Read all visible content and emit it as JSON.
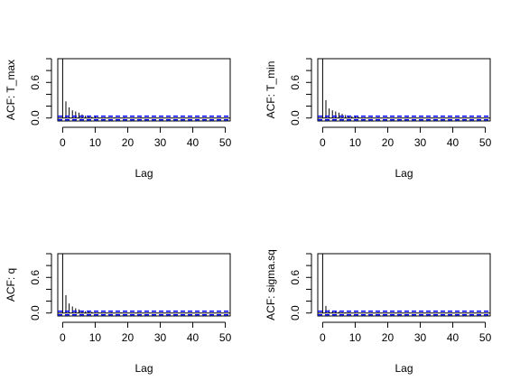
{
  "chart_data": [
    {
      "type": "bar",
      "ylabel": "ACF: T_max",
      "xlabel": "Lag",
      "x_ticks": [
        0,
        10,
        20,
        30,
        40,
        50
      ],
      "y_ticks": [
        "0.0",
        "0.6"
      ],
      "xlim": [
        -1.5,
        51.5
      ],
      "ylim": [
        -0.05,
        1.0
      ],
      "conf_bound": 0.03,
      "conf_color": "#0000ff",
      "lags": [
        0,
        1,
        2,
        3,
        4,
        5,
        6,
        7,
        8,
        9,
        10,
        11,
        12,
        13,
        14,
        15,
        16,
        17,
        18,
        19,
        20,
        21,
        22,
        23,
        24,
        25,
        26,
        27,
        28,
        29,
        30,
        31,
        32,
        33,
        34,
        35,
        36,
        37,
        38,
        39,
        40,
        41,
        42,
        43,
        44,
        45,
        46,
        47,
        48,
        49,
        50
      ],
      "values": [
        1.0,
        0.28,
        0.18,
        0.13,
        0.11,
        0.09,
        0.06,
        0.04,
        0.03,
        0.02,
        0.02,
        0.01,
        0.01,
        0.01,
        0.01,
        0.0,
        0.01,
        0.0,
        0.0,
        0.01,
        0.0,
        0.0,
        0.0,
        0.0,
        0.01,
        0.0,
        0.0,
        0.0,
        0.0,
        0.0,
        0.0,
        0.0,
        0.0,
        0.0,
        0.0,
        0.0,
        0.0,
        0.0,
        0.0,
        0.0,
        0.0,
        0.0,
        0.0,
        0.0,
        0.0,
        0.0,
        0.0,
        0.0,
        0.0,
        0.0,
        0.0
      ]
    },
    {
      "type": "bar",
      "ylabel": "ACF: T_min",
      "xlabel": "Lag",
      "x_ticks": [
        0,
        10,
        20,
        30,
        40,
        50
      ],
      "y_ticks": [
        "0.0",
        "0.6"
      ],
      "xlim": [
        -1.5,
        51.5
      ],
      "ylim": [
        -0.05,
        1.0
      ],
      "conf_bound": 0.03,
      "conf_color": "#0000ff",
      "lags": [
        0,
        1,
        2,
        3,
        4,
        5,
        6,
        7,
        8,
        9,
        10,
        11,
        12,
        13,
        14,
        15,
        16,
        17,
        18,
        19,
        20,
        21,
        22,
        23,
        24,
        25,
        26,
        27,
        28,
        29,
        30,
        31,
        32,
        33,
        34,
        35,
        36,
        37,
        38,
        39,
        40,
        41,
        42,
        43,
        44,
        45,
        46,
        47,
        48,
        49,
        50
      ],
      "values": [
        1.0,
        0.3,
        0.16,
        0.13,
        0.11,
        0.09,
        0.07,
        0.05,
        0.04,
        0.03,
        0.02,
        0.02,
        0.01,
        0.01,
        0.01,
        0.01,
        0.0,
        0.01,
        0.0,
        0.0,
        0.01,
        0.0,
        0.0,
        0.0,
        0.0,
        0.0,
        0.01,
        0.0,
        0.0,
        0.0,
        0.0,
        0.0,
        0.0,
        0.0,
        0.0,
        0.0,
        0.0,
        0.0,
        0.0,
        0.0,
        0.0,
        0.0,
        0.0,
        0.0,
        0.0,
        0.0,
        0.0,
        0.0,
        0.0,
        0.0,
        0.0
      ]
    },
    {
      "type": "bar",
      "ylabel": "ACF: q",
      "xlabel": "Lag",
      "x_ticks": [
        0,
        10,
        20,
        30,
        40,
        50
      ],
      "y_ticks": [
        "0.0",
        "0.6"
      ],
      "xlim": [
        -1.5,
        51.5
      ],
      "ylim": [
        -0.05,
        1.0
      ],
      "conf_bound": 0.03,
      "conf_color": "#0000ff",
      "lags": [
        0,
        1,
        2,
        3,
        4,
        5,
        6,
        7,
        8,
        9,
        10,
        11,
        12,
        13,
        14,
        15,
        16,
        17,
        18,
        19,
        20,
        21,
        22,
        23,
        24,
        25,
        26,
        27,
        28,
        29,
        30,
        31,
        32,
        33,
        34,
        35,
        36,
        37,
        38,
        39,
        40,
        41,
        42,
        43,
        44,
        45,
        46,
        47,
        48,
        49,
        50
      ],
      "values": [
        1.0,
        0.3,
        0.16,
        0.11,
        0.08,
        0.06,
        0.04,
        0.03,
        0.02,
        0.02,
        0.01,
        0.01,
        0.01,
        0.01,
        0.0,
        0.01,
        0.0,
        0.0,
        0.01,
        0.0,
        0.0,
        0.0,
        0.0,
        0.01,
        0.0,
        0.0,
        0.0,
        0.0,
        0.0,
        0.0,
        0.0,
        0.0,
        0.0,
        0.0,
        0.0,
        0.0,
        0.0,
        0.0,
        0.0,
        0.0,
        0.0,
        0.0,
        0.0,
        0.0,
        0.0,
        0.0,
        0.0,
        0.0,
        0.0,
        0.0,
        0.0
      ]
    },
    {
      "type": "bar",
      "ylabel": "ACF: sigma.sq",
      "xlabel": "Lag",
      "x_ticks": [
        0,
        10,
        20,
        30,
        40,
        50
      ],
      "y_ticks": [
        "0.0",
        "0.6"
      ],
      "xlim": [
        -1.5,
        51.5
      ],
      "ylim": [
        -0.05,
        1.0
      ],
      "conf_bound": 0.03,
      "conf_color": "#0000ff",
      "lags": [
        0,
        1,
        2,
        3,
        4,
        5,
        6,
        7,
        8,
        9,
        10,
        11,
        12,
        13,
        14,
        15,
        16,
        17,
        18,
        19,
        20,
        21,
        22,
        23,
        24,
        25,
        26,
        27,
        28,
        29,
        30,
        31,
        32,
        33,
        34,
        35,
        36,
        37,
        38,
        39,
        40,
        41,
        42,
        43,
        44,
        45,
        46,
        47,
        48,
        49,
        50
      ],
      "values": [
        1.0,
        0.12,
        0.05,
        0.03,
        0.02,
        0.02,
        0.01,
        0.01,
        0.01,
        0.0,
        0.01,
        0.0,
        0.0,
        0.0,
        0.0,
        0.0,
        0.0,
        0.01,
        0.0,
        0.0,
        0.0,
        0.0,
        0.0,
        0.0,
        0.0,
        0.0,
        0.0,
        0.0,
        0.0,
        0.0,
        0.0,
        0.0,
        0.0,
        0.0,
        0.0,
        0.0,
        0.0,
        0.0,
        0.0,
        0.0,
        0.0,
        0.0,
        0.0,
        0.0,
        0.0,
        0.0,
        0.0,
        0.0,
        0.0,
        0.0,
        0.0
      ]
    }
  ]
}
